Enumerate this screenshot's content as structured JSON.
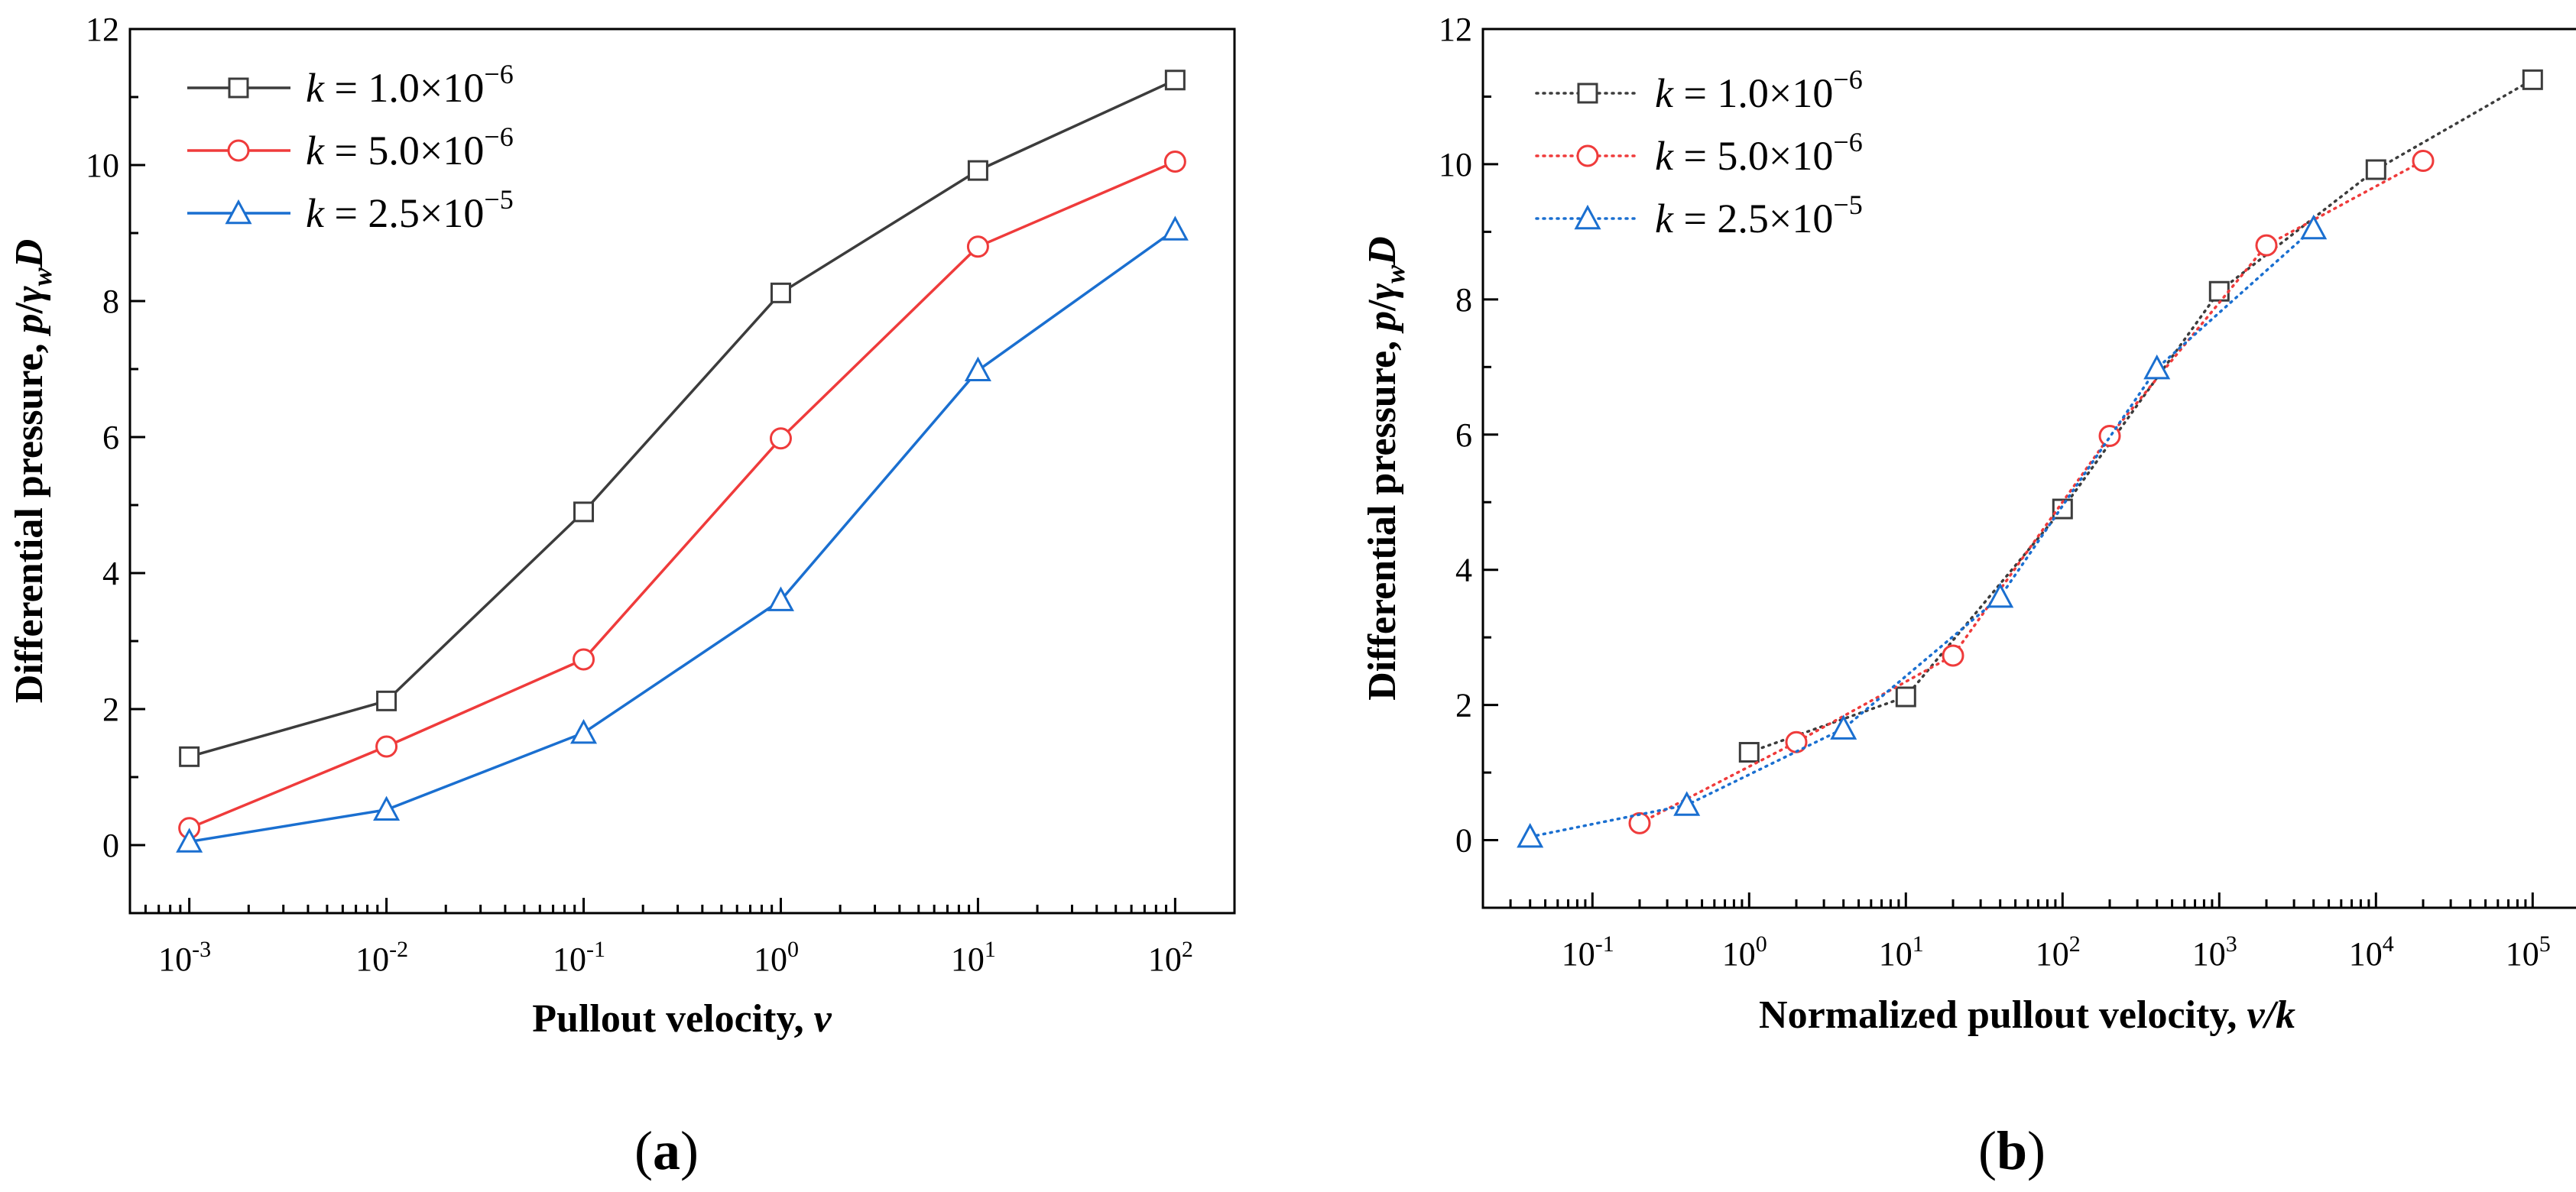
{
  "chart_data": [
    {
      "type": "line",
      "panel_label": "(a)",
      "xscale": "log",
      "xlim": [
        0.0005,
        200
      ],
      "ylim": [
        -1,
        12
      ],
      "xticks": [
        {
          "value": 0.001,
          "base": "10",
          "exp": "-3"
        },
        {
          "value": 0.01,
          "base": "10",
          "exp": "-2"
        },
        {
          "value": 0.1,
          "base": "10",
          "exp": "-1"
        },
        {
          "value": 1,
          "base": "10",
          "exp": "0"
        },
        {
          "value": 10,
          "base": "10",
          "exp": "1"
        },
        {
          "value": 100,
          "base": "10",
          "exp": "2"
        }
      ],
      "yticks": [
        "0",
        "2",
        "4",
        "6",
        "8",
        "10",
        "12"
      ],
      "xlabel": {
        "main": "Pullout velocity, ",
        "italic": "v"
      },
      "ylabel": {
        "pre": "Differential pressure, ",
        "p": "p",
        "slash": "/",
        "gamma": "γ",
        "sub": "w",
        "D": "D"
      },
      "line_style": "solid",
      "legend_position": "top-left",
      "series": [
        {
          "name": "k = 1.0×10^-6",
          "label_k": "k",
          "label_eq": " = 1.0×10",
          "label_exp": "−6",
          "color": "#3c3c3c",
          "marker": "square",
          "x": [
            0.001,
            0.01,
            0.1,
            1,
            10,
            100
          ],
          "y": [
            1.3,
            2.12,
            4.9,
            8.12,
            9.92,
            11.25
          ]
        },
        {
          "name": "k = 5.0×10^-6",
          "label_k": "k",
          "label_eq": " = 5.0×10",
          "label_exp": "−6",
          "color": "#ef3b3b",
          "marker": "circle",
          "x": [
            0.001,
            0.01,
            0.1,
            1,
            10,
            100
          ],
          "y": [
            0.25,
            1.45,
            2.73,
            5.98,
            8.8,
            10.05
          ]
        },
        {
          "name": "k = 2.5×10^-5",
          "label_k": "k",
          "label_eq": " = 2.5×10",
          "label_exp": "−5",
          "color": "#1a6fd0",
          "marker": "triangle",
          "x": [
            0.001,
            0.01,
            0.1,
            1,
            10,
            100
          ],
          "y": [
            0.05,
            0.52,
            1.65,
            3.6,
            6.98,
            9.05
          ]
        }
      ]
    },
    {
      "type": "line",
      "panel_label": "(b)",
      "xscale": "log",
      "xlim": [
        0.02,
        200000
      ],
      "ylim": [
        -1,
        12
      ],
      "xticks": [
        {
          "value": 0.1,
          "base": "10",
          "exp": "-1"
        },
        {
          "value": 1,
          "base": "10",
          "exp": "0"
        },
        {
          "value": 10,
          "base": "10",
          "exp": "1"
        },
        {
          "value": 100,
          "base": "10",
          "exp": "2"
        },
        {
          "value": 1000,
          "base": "10",
          "exp": "3"
        },
        {
          "value": 10000,
          "base": "10",
          "exp": "4"
        },
        {
          "value": 100000,
          "base": "10",
          "exp": "5"
        }
      ],
      "yticks": [
        "0",
        "2",
        "4",
        "6",
        "8",
        "10",
        "12"
      ],
      "xlabel": {
        "main": "Normalized pullout velocity, ",
        "italic": "v/k"
      },
      "ylabel": {
        "pre": "Differential pressure, ",
        "p": "p",
        "slash": "/",
        "gamma": "γ",
        "sub": "w",
        "D": "D"
      },
      "line_style": "dotted",
      "legend_position": "top-left",
      "series": [
        {
          "name": "k = 1.0×10^-6",
          "label_k": "k",
          "label_eq": " = 1.0×10",
          "label_exp": "−6",
          "color": "#3c3c3c",
          "marker": "square",
          "x": [
            1,
            10,
            100,
            1000,
            10000,
            100000
          ],
          "y": [
            1.3,
            2.12,
            4.9,
            8.12,
            9.92,
            11.25
          ]
        },
        {
          "name": "k = 5.0×10^-6",
          "label_k": "k",
          "label_eq": " = 5.0×10",
          "label_exp": "−6",
          "color": "#ef3b3b",
          "marker": "circle",
          "x": [
            0.2,
            2,
            20,
            200,
            2000,
            20000
          ],
          "y": [
            0.25,
            1.45,
            2.73,
            5.98,
            8.8,
            10.05
          ]
        },
        {
          "name": "k = 2.5×10^-5",
          "label_k": "k",
          "label_eq": " = 2.5×10",
          "label_exp": "−5",
          "color": "#1a6fd0",
          "marker": "triangle",
          "x": [
            0.04,
            0.4,
            4,
            40,
            400,
            4000
          ],
          "y": [
            0.05,
            0.52,
            1.65,
            3.6,
            6.98,
            9.05
          ]
        }
      ]
    }
  ]
}
